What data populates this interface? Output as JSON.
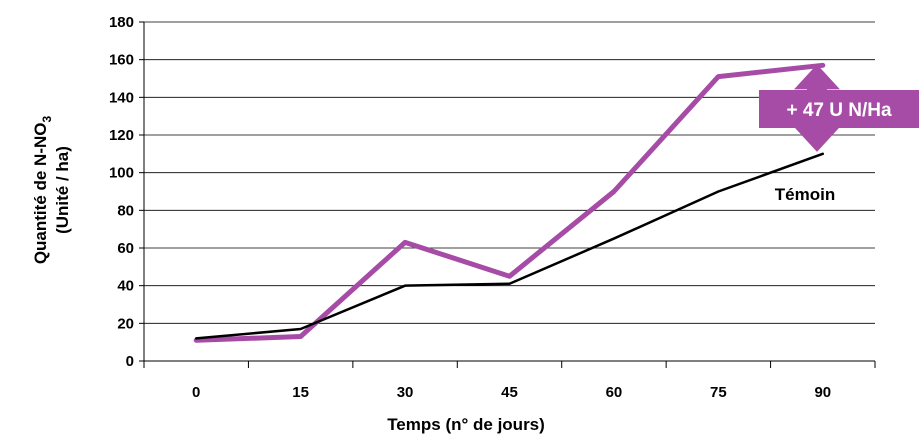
{
  "chart_data": {
    "type": "line",
    "x": [
      0,
      15,
      30,
      45,
      60,
      75,
      90
    ],
    "xlabel": "Temps (n° de jours)",
    "ylabel_line1": "Quantité de N-NO",
    "ylabel_sub": "3",
    "ylabel_line2": "(Unité / ha)",
    "ylim": [
      0,
      180
    ],
    "yticks": [
      0,
      20,
      40,
      60,
      80,
      100,
      120,
      140,
      160,
      180
    ],
    "grid": "horizontal",
    "series": [
      {
        "label": "",
        "color": "#a64ca6",
        "values": [
          11,
          13,
          63,
          45,
          90,
          151,
          157
        ]
      },
      {
        "label": "Témoin",
        "color": "#000000",
        "values": [
          12,
          17,
          40,
          41,
          65,
          90,
          110
        ]
      }
    ],
    "annotation": {
      "text": "+ 47 U N/Ha",
      "color": "#a64ca6"
    }
  }
}
